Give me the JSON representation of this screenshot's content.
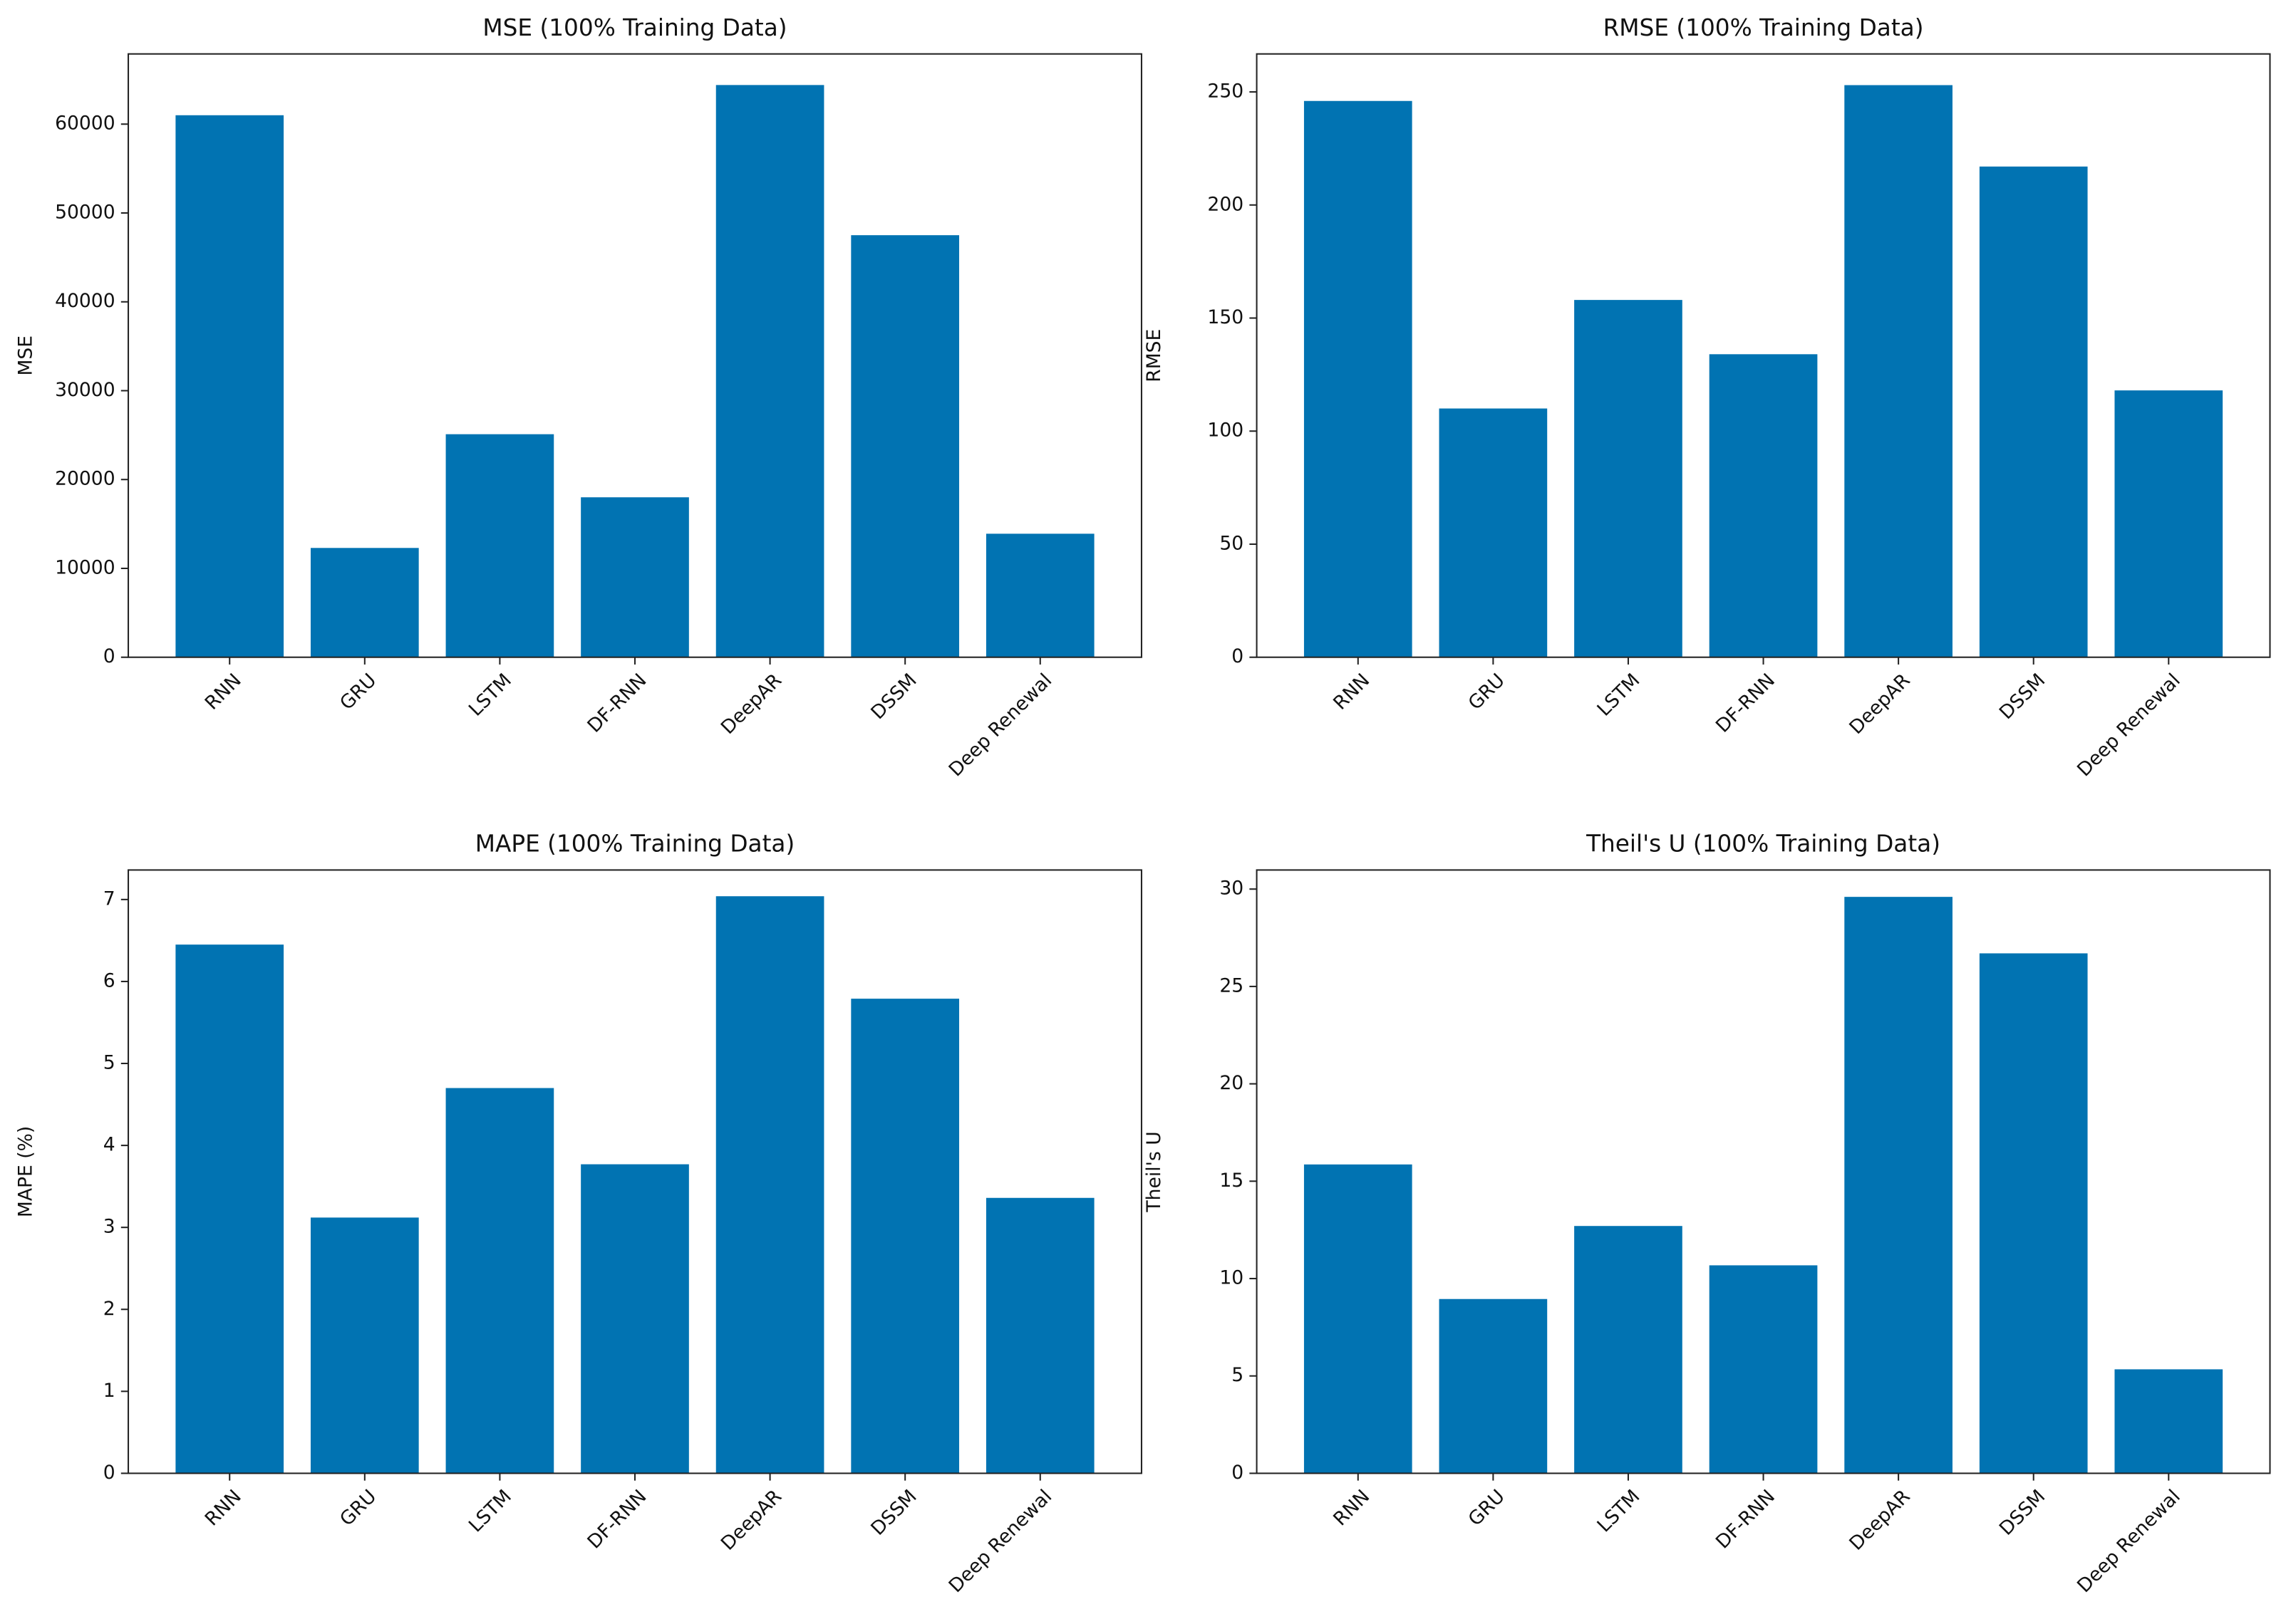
{
  "chart_data": [
    {
      "type": "bar",
      "title": "MSE (100% Training Data)",
      "y_label": "MSE",
      "categories": [
        "RNN",
        "GRU",
        "LSTM",
        "DF-RNN",
        "DeepAR",
        "DSSM",
        "Deep Renewal"
      ],
      "values": [
        61000,
        12300,
        25100,
        18000,
        64400,
        47500,
        13900
      ],
      "color": "#0173b2",
      "ylim": [
        0,
        67900
      ],
      "yticks": [
        0,
        10000,
        20000,
        30000,
        40000,
        50000,
        60000
      ]
    },
    {
      "type": "bar",
      "title": "RMSE (100% Training Data)",
      "y_label": "RMSE",
      "categories": [
        "RNN",
        "GRU",
        "LSTM",
        "DF-RNN",
        "DeepAR",
        "DSSM",
        "Deep Renewal"
      ],
      "values": [
        246,
        110,
        158,
        134,
        253,
        217,
        118
      ],
      "color": "#0173b2",
      "ylim": [
        0,
        266.8
      ],
      "yticks": [
        0,
        50,
        100,
        150,
        200,
        250
      ]
    },
    {
      "type": "bar",
      "title": "MAPE (100% Training Data)",
      "y_label": "MAPE (%)",
      "categories": [
        "RNN",
        "GRU",
        "LSTM",
        "DF-RNN",
        "DeepAR",
        "DSSM",
        "Deep Renewal"
      ],
      "values": [
        6.45,
        3.12,
        4.7,
        3.77,
        7.04,
        5.79,
        3.36
      ],
      "color": "#0173b2",
      "ylim": [
        0,
        7.36
      ],
      "yticks": [
        0,
        1,
        2,
        3,
        4,
        5,
        6,
        7
      ]
    },
    {
      "type": "bar",
      "title": "Theil's U (100% Training Data)",
      "y_label": "Theil's U",
      "categories": [
        "RNN",
        "GRU",
        "LSTM",
        "DF-RNN",
        "DeepAR",
        "DSSM",
        "Deep Renewal"
      ],
      "values": [
        15.86,
        8.95,
        12.7,
        10.68,
        29.6,
        26.7,
        5.34
      ],
      "color": "#0173b2",
      "ylim": [
        0,
        30.98
      ],
      "yticks": [
        0,
        5,
        10,
        15,
        20,
        25,
        30
      ]
    }
  ]
}
